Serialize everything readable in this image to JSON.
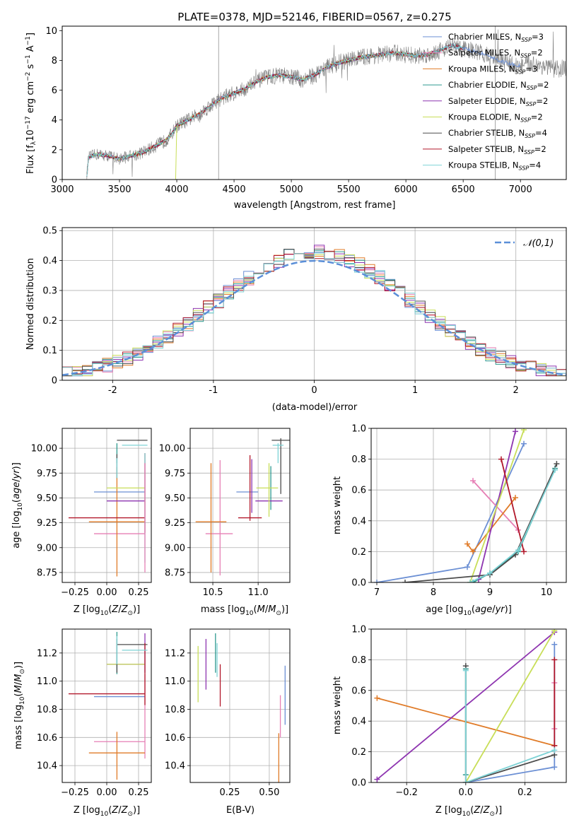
{
  "figure_title": "PLATE=0378, MJD=52146, FIBERID=0567, z=0.275",
  "colors": {
    "Chabrier MILES": "#6b8fd4",
    "Salpeter MILES": "#e67fb5",
    "Kroupa MILES": "#e07b28",
    "Chabrier ELODIE": "#2f9a8f",
    "Salpeter ELODIE": "#8e35b0",
    "Kroupa ELODIE": "#c8de58",
    "Chabrier STELIB": "#4d4d4d",
    "Salpeter STELIB": "#b2182b",
    "Kroupa STELIB": "#7fd3d6",
    "data": "#808080",
    "normal": "#5b8fd8"
  },
  "chart_data": [
    {
      "id": "spectrum",
      "type": "line",
      "title": "PLATE=0378, MJD=52146, FIBERID=0567, z=0.275",
      "xlabel": "wavelength [Angstrom, rest frame]",
      "ylabel": "Flux [f_λ 10^-17 erg cm^-2 s^-1 A^-1]",
      "xlim": [
        3000,
        7400
      ],
      "ylim": [
        0,
        10.3
      ],
      "xticks": [
        3000,
        3500,
        4000,
        4500,
        5000,
        5500,
        6000,
        6500,
        7000
      ],
      "yticks": [
        0,
        2,
        4,
        6,
        8,
        10
      ],
      "data_series": {
        "name": "data",
        "x": [
          3215,
          3230,
          3300,
          3400,
          3450,
          3500,
          3600,
          3700,
          3800,
          3900,
          3950,
          4000,
          4100,
          4200,
          4300,
          4400,
          4500,
          4600,
          4700,
          4800,
          4900,
          5000,
          5100,
          5200,
          5300,
          5400,
          5500,
          5600,
          5700,
          5800,
          5900,
          6000,
          6100,
          6200,
          6300,
          6400,
          6500,
          6600,
          6700,
          6800,
          6900,
          7000,
          7100,
          7200,
          7300,
          7400
        ],
        "y": [
          0.3,
          1.5,
          1.7,
          1.6,
          1.5,
          1.4,
          1.6,
          1.8,
          2.2,
          2.6,
          3.0,
          3.6,
          4.0,
          4.4,
          5.0,
          5.5,
          5.8,
          6.1,
          6.6,
          6.9,
          7.0,
          6.9,
          6.7,
          7.0,
          7.5,
          7.8,
          8.0,
          8.2,
          8.3,
          8.4,
          8.5,
          8.4,
          8.3,
          8.4,
          8.7,
          9.0,
          8.8,
          8.6,
          8.4,
          8.0,
          7.8,
          7.6,
          7.8,
          7.6,
          7.4,
          7.5
        ]
      },
      "legend": [
        {
          "name": "Chabrier MILES",
          "nssp": "3"
        },
        {
          "name": "Salpeter MILES",
          "nssp": "2"
        },
        {
          "name": "Kroupa MILES",
          "nssp": "3"
        },
        {
          "name": "Chabrier ELODIE",
          "nssp": "2"
        },
        {
          "name": "Salpeter ELODIE",
          "nssp": "2"
        },
        {
          "name": "Kroupa ELODIE",
          "nssp": "2"
        },
        {
          "name": "Chabrier STELIB",
          "nssp": "4"
        },
        {
          "name": "Salpeter STELIB",
          "nssp": "2"
        },
        {
          "name": "Kroupa STELIB",
          "nssp": "4"
        }
      ],
      "legend_placement": "right"
    },
    {
      "id": "residuals",
      "type": "histogram",
      "xlabel": "(data-model)/error",
      "ylabel": "Normed distribution",
      "xlim": [
        -2.5,
        2.5
      ],
      "ylim": [
        0,
        0.51
      ],
      "xticks": [
        -2,
        -1,
        0,
        1,
        2
      ],
      "yticks": [
        0.0,
        0.1,
        0.2,
        0.3,
        0.4,
        0.5
      ],
      "grid": true,
      "legend": [
        {
          "name": "𝒩(0,1)"
        }
      ],
      "legend_placement": "top-right",
      "bin_width": 0.1
    },
    {
      "id": "age-vs-Z",
      "type": "errorbar",
      "xlabel": "Z [log10(Z/Z⊙)]",
      "ylabel": "age  [log10(age/yr)]",
      "xlim": [
        -0.35,
        0.35
      ],
      "ylim": [
        8.65,
        10.2
      ],
      "xticks": [
        -0.25,
        0.0,
        0.25
      ],
      "yticks": [
        8.75,
        9.0,
        9.25,
        9.5,
        9.75,
        10.0
      ],
      "xticklabels": [
        "−0.25",
        "0.00",
        "0.25"
      ],
      "yticklabels": [
        "8.75",
        "9.00",
        "9.25",
        "9.50",
        "9.75",
        "10.00"
      ],
      "grid": true,
      "points": [
        {
          "series": "Chabrier MILES",
          "x": 0.1,
          "xerr": 0.2,
          "y": 9.56,
          "yerr": 0.0
        },
        {
          "series": "Salpeter MILES",
          "x": 0.1,
          "xerr": 0.2,
          "y": 9.14,
          "yerr": 0.0
        },
        {
          "series": "Kroupa MILES",
          "x": 0.08,
          "xerr": 0.22,
          "y": 9.26,
          "yerr": 0.55
        },
        {
          "series": "Chabrier ELODIE",
          "x": 0.08,
          "xerr": 0.0,
          "y": 9.95,
          "yerr": 0.1
        },
        {
          "series": "Salpeter ELODIE",
          "x": 0.15,
          "xerr": 0.15,
          "y": 9.47,
          "yerr": 0.0
        },
        {
          "series": "Kroupa ELODIE",
          "x": 0.15,
          "xerr": 0.15,
          "y": 9.6,
          "yerr": 0.0
        },
        {
          "series": "Chabrier STELIB",
          "x": 0.08,
          "xerr": 0.0,
          "y": 9.82,
          "yerr": 0.12
        },
        {
          "series": "Salpeter STELIB",
          "x": 0.0,
          "xerr": 0.3,
          "y": 9.3,
          "yerr": 0.0
        },
        {
          "series": "Salpeter STELIB",
          "x": 0.3,
          "xerr": 0.0,
          "y": 9.55,
          "yerr": 0.4
        },
        {
          "series": "Kroupa STELIB",
          "x": 0.08,
          "xerr": 0.0,
          "y": 9.8,
          "yerr": 0.1
        },
        {
          "series": "Chabrier STELIB",
          "x": 0.2,
          "xerr": 0.12,
          "y": 10.08,
          "yerr": 0.0
        },
        {
          "series": "Kroupa STELIB",
          "x": 0.22,
          "xerr": 0.1,
          "y": 10.03,
          "yerr": 0.0
        },
        {
          "series": "Kroupa STELIB",
          "x": 0.3,
          "xerr": 0.0,
          "y": 9.4,
          "yerr": 0.55
        },
        {
          "series": "Salpeter MILES",
          "x": 0.3,
          "xerr": 0.0,
          "y": 9.3,
          "yerr": 0.55
        }
      ]
    },
    {
      "id": "age-vs-mass",
      "type": "errorbar",
      "xlabel": "mass [log10(M/M⊙)]",
      "ylabel": "",
      "xlim": [
        10.25,
        11.35
      ],
      "ylim": [
        8.65,
        10.2
      ],
      "xticks": [
        10.5,
        11.0
      ],
      "yticks": [
        8.75,
        9.0,
        9.25,
        9.5,
        9.75,
        10.0
      ],
      "xticklabels": [
        "10.5",
        "11.0"
      ],
      "yticklabels": [
        "8.75",
        "9.00",
        "9.25",
        "9.50",
        "9.75",
        "10.00"
      ],
      "grid": true,
      "points": [
        {
          "series": "Chabrier MILES",
          "x": 10.88,
          "xerr": 0.12,
          "y": 9.56,
          "yerr": 0.0
        },
        {
          "series": "Salpeter MILES",
          "x": 10.57,
          "xerr": 0.15,
          "y": 9.14,
          "yerr": 0.0
        },
        {
          "series": "Salpeter MILES",
          "x": 10.58,
          "xerr": 0.0,
          "y": 9.3,
          "yerr": 0.58
        },
        {
          "series": "Kroupa MILES",
          "x": 10.48,
          "xerr": 0.17,
          "y": 9.26,
          "yerr": 0.0
        },
        {
          "series": "Kroupa MILES",
          "x": 10.48,
          "xerr": 0.0,
          "y": 9.3,
          "yerr": 0.55
        },
        {
          "series": "Chabrier ELODIE",
          "x": 11.14,
          "xerr": 0.0,
          "y": 9.6,
          "yerr": 0.22
        },
        {
          "series": "Salpeter ELODIE",
          "x": 11.12,
          "xerr": 0.15,
          "y": 9.47,
          "yerr": 0.0
        },
        {
          "series": "Salpeter ELODIE",
          "x": 10.93,
          "xerr": 0.0,
          "y": 9.62,
          "yerr": 0.27
        },
        {
          "series": "Kroupa ELODIE",
          "x": 11.1,
          "xerr": 0.12,
          "y": 9.6,
          "yerr": 0.0
        },
        {
          "series": "Kroupa ELODIE",
          "x": 11.12,
          "xerr": 0.0,
          "y": 9.58,
          "yerr": 0.27
        },
        {
          "series": "Chabrier STELIB",
          "x": 11.25,
          "xerr": 0.1,
          "y": 10.08,
          "yerr": 0.0
        },
        {
          "series": "Chabrier STELIB",
          "x": 11.25,
          "xerr": 0.0,
          "y": 9.82,
          "yerr": 0.28
        },
        {
          "series": "Salpeter STELIB",
          "x": 10.91,
          "xerr": 0.13,
          "y": 9.3,
          "yerr": 0.0
        },
        {
          "series": "Salpeter STELIB",
          "x": 10.91,
          "xerr": 0.0,
          "y": 9.6,
          "yerr": 0.33
        },
        {
          "series": "Kroupa STELIB",
          "x": 11.22,
          "xerr": 0.06,
          "y": 10.03,
          "yerr": 0.0
        },
        {
          "series": "Kroupa STELIB",
          "x": 11.22,
          "xerr": 0.0,
          "y": 9.95,
          "yerr": 0.1
        }
      ]
    },
    {
      "id": "massweight-vs-age",
      "type": "line",
      "xlabel": "age  [log10(age/yr)]",
      "ylabel": "mass weight",
      "xlim": [
        6.9,
        10.35
      ],
      "ylim": [
        0,
        1.0
      ],
      "xticks": [
        7,
        8,
        9,
        10
      ],
      "yticks": [
        0.0,
        0.2,
        0.4,
        0.6,
        0.8,
        1.0
      ],
      "xticklabels": [
        "7",
        "8",
        "9",
        "10"
      ],
      "yticklabels": [
        "0.0",
        "0.2",
        "0.4",
        "0.6",
        "0.8",
        "1.0"
      ],
      "grid": true,
      "series": [
        {
          "series": "Chabrier MILES",
          "x": [
            7.0,
            8.6,
            9.6
          ],
          "y": [
            0.0,
            0.1,
            0.9
          ]
        },
        {
          "series": "Salpeter MILES",
          "x": [
            8.7,
            9.5
          ],
          "y": [
            0.66,
            0.34
          ]
        },
        {
          "series": "Kroupa MILES",
          "x": [
            8.6,
            8.7,
            9.45
          ],
          "y": [
            0.25,
            0.2,
            0.55
          ]
        },
        {
          "series": "Chabrier ELODIE",
          "x": [
            8.7,
            9.0,
            9.5,
            10.15
          ],
          "y": [
            0.0,
            0.06,
            0.2,
            0.74
          ]
        },
        {
          "series": "Salpeter ELODIE",
          "x": [
            8.8,
            9.45
          ],
          "y": [
            0.02,
            0.98
          ]
        },
        {
          "series": "Kroupa ELODIE",
          "x": [
            8.65,
            9.6
          ],
          "y": [
            0.0,
            0.99
          ]
        },
        {
          "series": "Chabrier STELIB",
          "x": [
            7.5,
            9.0,
            9.45,
            10.18
          ],
          "y": [
            0.0,
            0.05,
            0.18,
            0.77
          ]
        },
        {
          "series": "Salpeter STELIB",
          "x": [
            9.2,
            9.6
          ],
          "y": [
            0.8,
            0.2
          ]
        },
        {
          "series": "Kroupa STELIB",
          "x": [
            8.65,
            9.0,
            9.5,
            10.15
          ],
          "y": [
            0.0,
            0.06,
            0.21,
            0.73
          ]
        }
      ]
    },
    {
      "id": "mass-vs-Z",
      "type": "errorbar",
      "xlabel": "Z [log10(Z/Z⊙)]",
      "ylabel": "mass [log10(M/M⊙)]",
      "xlim": [
        -0.35,
        0.35
      ],
      "ylim": [
        10.28,
        11.37
      ],
      "xticks": [
        -0.25,
        0.0,
        0.25
      ],
      "yticks": [
        10.4,
        10.6,
        10.8,
        11.0,
        11.2
      ],
      "xticklabels": [
        "−0.25",
        "0.00",
        "0.25"
      ],
      "yticklabels": [
        "10.4",
        "10.6",
        "10.8",
        "11.0",
        "11.2"
      ],
      "grid": true,
      "points": [
        {
          "series": "Chabrier MILES",
          "x": 0.1,
          "xerr": 0.2,
          "y": 10.89,
          "yerr": 0.0
        },
        {
          "series": "Salpeter MILES",
          "x": 0.1,
          "xerr": 0.2,
          "y": 10.57,
          "yerr": 0.0
        },
        {
          "series": "Salpeter MILES",
          "x": 0.3,
          "xerr": 0.0,
          "y": 10.75,
          "yerr": 0.3
        },
        {
          "series": "Kroupa MILES",
          "x": 0.08,
          "xerr": 0.22,
          "y": 10.49,
          "yerr": 0.0
        },
        {
          "series": "Kroupa MILES",
          "x": 0.08,
          "xerr": 0.0,
          "y": 10.47,
          "yerr": 0.17
        },
        {
          "series": "Chabrier ELODIE",
          "x": 0.08,
          "xerr": 0.0,
          "y": 11.2,
          "yerr": 0.15
        },
        {
          "series": "Salpeter ELODIE",
          "x": 0.15,
          "xerr": 0.15,
          "y": 11.12,
          "yerr": 0.0
        },
        {
          "series": "Salpeter ELODIE",
          "x": 0.3,
          "xerr": 0.0,
          "y": 11.2,
          "yerr": 0.14
        },
        {
          "series": "Kroupa ELODIE",
          "x": 0.15,
          "xerr": 0.15,
          "y": 11.12,
          "yerr": 0.0
        },
        {
          "series": "Chabrier STELIB",
          "x": 0.2,
          "xerr": 0.12,
          "y": 11.26,
          "yerr": 0.0
        },
        {
          "series": "Chabrier STELIB",
          "x": 0.08,
          "xerr": 0.0,
          "y": 11.18,
          "yerr": 0.12
        },
        {
          "series": "Salpeter STELIB",
          "x": 0.0,
          "xerr": 0.3,
          "y": 10.91,
          "yerr": 0.0
        },
        {
          "series": "Salpeter STELIB",
          "x": 0.3,
          "xerr": 0.0,
          "y": 11.05,
          "yerr": 0.22
        },
        {
          "series": "Kroupa STELIB",
          "x": 0.22,
          "xerr": 0.1,
          "y": 11.22,
          "yerr": 0.0
        },
        {
          "series": "Kroupa STELIB",
          "x": 0.08,
          "xerr": 0.0,
          "y": 11.22,
          "yerr": 0.1
        }
      ]
    },
    {
      "id": "mass-vs-ebv",
      "type": "errorbar",
      "xlabel": "E(B-V)",
      "ylabel": "",
      "xlim": [
        0.0,
        0.63
      ],
      "ylim": [
        10.28,
        11.37
      ],
      "xticks": [
        0.25,
        0.5
      ],
      "yticks": [
        10.4,
        10.6,
        10.8,
        11.0,
        11.2
      ],
      "xticklabels": [
        "0.25",
        "0.50"
      ],
      "yticklabels": [
        "10.4",
        "10.6",
        "10.8",
        "11.0",
        "11.2"
      ],
      "grid": true,
      "points": [
        {
          "series": "Kroupa ELODIE",
          "x": 0.05,
          "xerr": 0.0,
          "y": 11.05,
          "yerr": 0.2
        },
        {
          "series": "Salpeter ELODIE",
          "x": 0.1,
          "xerr": 0.0,
          "y": 11.12,
          "yerr": 0.18
        },
        {
          "series": "Chabrier ELODIE",
          "x": 0.16,
          "xerr": 0.0,
          "y": 11.2,
          "yerr": 0.14
        },
        {
          "series": "Kroupa STELIB",
          "x": 0.17,
          "xerr": 0.0,
          "y": 11.15,
          "yerr": 0.12
        },
        {
          "series": "Salpeter STELIB",
          "x": 0.19,
          "xerr": 0.0,
          "y": 10.97,
          "yerr": 0.15
        },
        {
          "series": "Salpeter MILES",
          "x": 0.57,
          "xerr": 0.0,
          "y": 10.75,
          "yerr": 0.15
        },
        {
          "series": "Kroupa MILES",
          "x": 0.56,
          "xerr": 0.0,
          "y": 10.45,
          "yerr": 0.18
        },
        {
          "series": "Chabrier MILES",
          "x": 0.6,
          "xerr": 0.0,
          "y": 10.9,
          "yerr": 0.21
        }
      ]
    },
    {
      "id": "massweight-vs-Z",
      "type": "line",
      "xlabel": "Z [log10(Z/Z⊙)]",
      "ylabel": "mass weight",
      "xlim": [
        -0.32,
        0.34
      ],
      "ylim": [
        0,
        1.0
      ],
      "xticks": [
        -0.2,
        0.0,
        0.2
      ],
      "yticks": [
        0.0,
        0.2,
        0.4,
        0.6,
        0.8,
        1.0
      ],
      "xticklabels": [
        "−0.2",
        "0.0",
        "0.2"
      ],
      "yticklabels": [
        "0.0",
        "0.2",
        "0.4",
        "0.6",
        "0.8",
        "1.0"
      ],
      "grid": true,
      "series": [
        {
          "series": "Chabrier MILES",
          "x": [
            0.0,
            0.3,
            0.3
          ],
          "y": [
            0.0,
            0.1,
            0.9
          ]
        },
        {
          "series": "Salpeter MILES",
          "x": [
            0.3,
            0.3
          ],
          "y": [
            0.35,
            0.65
          ]
        },
        {
          "series": "Kroupa MILES",
          "x": [
            -0.3,
            0.3
          ],
          "y": [
            0.55,
            0.24
          ]
        },
        {
          "series": "Chabrier ELODIE",
          "x": [
            0.0,
            0.0
          ],
          "y": [
            0.05,
            0.74
          ]
        },
        {
          "series": "Salpeter ELODIE",
          "x": [
            -0.3,
            0.3
          ],
          "y": [
            0.02,
            0.98
          ]
        },
        {
          "series": "Kroupa ELODIE",
          "x": [
            0.0,
            0.3
          ],
          "y": [
            0.0,
            0.99
          ]
        },
        {
          "series": "Chabrier STELIB",
          "x": [
            0.0,
            0.0,
            0.3
          ],
          "y": [
            0.76,
            0.0,
            0.18
          ]
        },
        {
          "series": "Salpeter STELIB",
          "x": [
            0.3,
            0.3
          ],
          "y": [
            0.24,
            0.8
          ]
        },
        {
          "series": "Kroupa STELIB",
          "x": [
            0.0,
            0.0,
            0.3
          ],
          "y": [
            0.73,
            0.0,
            0.21
          ]
        }
      ]
    }
  ]
}
